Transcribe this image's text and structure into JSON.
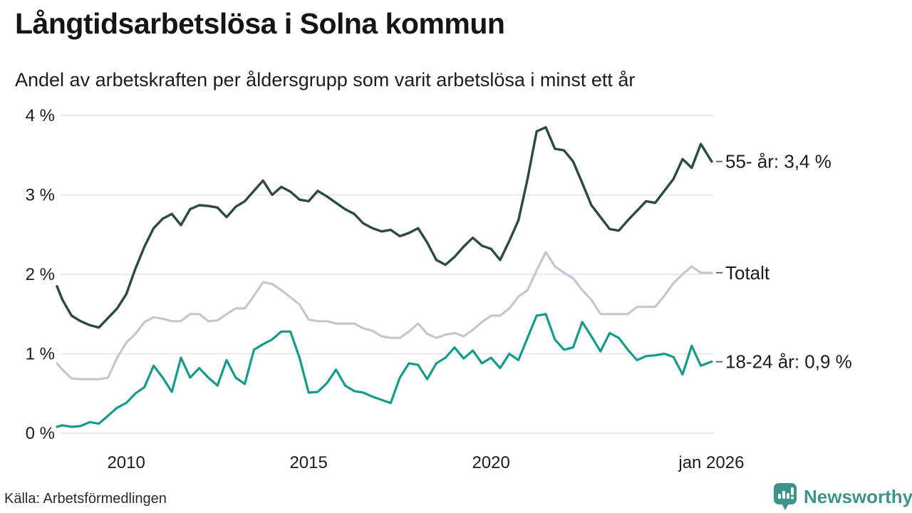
{
  "header": {
    "title": "Långtidsarbetslösa i Solna kommun",
    "subtitle": "Andel av arbetskraften per åldersgrupp som varit arbetslösa i minst ett år"
  },
  "footer": {
    "source": "Källa: Arbetsförmedlingen",
    "brand": "Newsworthy"
  },
  "colors": {
    "grid": "#e4e3e9",
    "axis_text": "#1c1c1c",
    "end_label_text": "#1b1b1b",
    "end_label_dash": "#5a5a5a",
    "brand_teal": "#3e938a",
    "title_text": "#151515"
  },
  "chart_data": {
    "type": "line",
    "title": "Långtidsarbetslösa i Solna kommun",
    "subtitle": "Andel av arbetskraften per åldersgrupp som varit arbetslösa i minst ett år",
    "xlabel": "",
    "ylabel": "",
    "grid": true,
    "legend_position": "right-end-labels",
    "x_range": [
      2008.1,
      2026.1
    ],
    "ylim": [
      0,
      4
    ],
    "y_ticks": [
      {
        "v": 0,
        "label": "0 %"
      },
      {
        "v": 1,
        "label": "1 %"
      },
      {
        "v": 2,
        "label": "2 %"
      },
      {
        "v": 3,
        "label": "3 %"
      },
      {
        "v": 4,
        "label": "4 %"
      }
    ],
    "x_ticks": [
      {
        "x": 2010,
        "label": "2010"
      },
      {
        "x": 2015,
        "label": "2015"
      },
      {
        "x": 2020,
        "label": "2020"
      },
      {
        "x": 2026.04,
        "label": "jan 2026"
      }
    ],
    "x": [
      2008.1,
      2008.25,
      2008.5,
      2008.75,
      2009.0,
      2009.25,
      2009.5,
      2009.75,
      2010.0,
      2010.25,
      2010.5,
      2010.75,
      2011.0,
      2011.25,
      2011.5,
      2011.75,
      2012.0,
      2012.25,
      2012.5,
      2012.75,
      2013.0,
      2013.25,
      2013.5,
      2013.75,
      2014.0,
      2014.25,
      2014.5,
      2014.75,
      2015.0,
      2015.25,
      2015.5,
      2015.75,
      2016.0,
      2016.25,
      2016.5,
      2016.75,
      2017.0,
      2017.25,
      2017.5,
      2017.75,
      2018.0,
      2018.25,
      2018.5,
      2018.75,
      2019.0,
      2019.25,
      2019.5,
      2019.75,
      2020.0,
      2020.25,
      2020.5,
      2020.75,
      2021.0,
      2021.25,
      2021.5,
      2021.75,
      2022.0,
      2022.25,
      2022.5,
      2022.75,
      2023.0,
      2023.25,
      2023.5,
      2023.75,
      2024.0,
      2024.25,
      2024.5,
      2024.75,
      2025.0,
      2025.25,
      2025.5,
      2025.75,
      2026.05
    ],
    "series": [
      {
        "name": "55- år",
        "end_label": "55- år: 3,4 %",
        "end_value_text": "3,4 %",
        "color": "#2b4a42",
        "stroke_width": 3.4,
        "values": [
          1.85,
          1.68,
          1.48,
          1.41,
          1.36,
          1.33,
          1.45,
          1.57,
          1.75,
          2.07,
          2.35,
          2.58,
          2.7,
          2.76,
          2.62,
          2.82,
          2.87,
          2.86,
          2.84,
          2.72,
          2.85,
          2.92,
          3.05,
          3.18,
          3.0,
          3.1,
          3.04,
          2.94,
          2.92,
          3.05,
          2.98,
          2.9,
          2.82,
          2.76,
          2.64,
          2.58,
          2.54,
          2.56,
          2.48,
          2.52,
          2.58,
          2.4,
          2.18,
          2.12,
          2.22,
          2.35,
          2.46,
          2.36,
          2.32,
          2.18,
          2.42,
          2.68,
          3.2,
          3.8,
          3.85,
          3.58,
          3.56,
          3.42,
          3.15,
          2.87,
          2.72,
          2.57,
          2.55,
          2.68,
          2.8,
          2.92,
          2.9,
          3.05,
          3.2,
          3.45,
          3.34,
          3.64,
          3.42
        ]
      },
      {
        "name": "Totalt",
        "end_label": "Totalt",
        "end_value_text": "",
        "color": "#c7c5d2",
        "stroke_width": 3.2,
        "values": [
          0.88,
          0.8,
          0.69,
          0.68,
          0.68,
          0.68,
          0.7,
          0.95,
          1.14,
          1.25,
          1.4,
          1.46,
          1.44,
          1.41,
          1.41,
          1.5,
          1.5,
          1.41,
          1.42,
          1.5,
          1.57,
          1.57,
          1.73,
          1.9,
          1.88,
          1.8,
          1.71,
          1.62,
          1.43,
          1.41,
          1.41,
          1.38,
          1.38,
          1.38,
          1.32,
          1.29,
          1.22,
          1.2,
          1.2,
          1.28,
          1.38,
          1.25,
          1.2,
          1.24,
          1.26,
          1.22,
          1.3,
          1.4,
          1.48,
          1.48,
          1.57,
          1.72,
          1.8,
          2.05,
          2.28,
          2.1,
          2.02,
          1.95,
          1.8,
          1.68,
          1.5,
          1.5,
          1.5,
          1.5,
          1.59,
          1.59,
          1.59,
          1.73,
          1.89,
          2.0,
          2.1,
          2.02,
          2.02
        ]
      },
      {
        "name": "18-24 år",
        "end_label": "18-24 år: 0,9 %",
        "end_value_text": "0,9 %",
        "color": "#169b8b",
        "stroke_width": 3.2,
        "values": [
          0.08,
          0.1,
          0.08,
          0.09,
          0.14,
          0.12,
          0.22,
          0.32,
          0.38,
          0.5,
          0.58,
          0.85,
          0.7,
          0.52,
          0.95,
          0.7,
          0.82,
          0.7,
          0.6,
          0.92,
          0.7,
          0.62,
          1.05,
          1.12,
          1.18,
          1.28,
          1.28,
          0.95,
          0.51,
          0.52,
          0.63,
          0.8,
          0.6,
          0.53,
          0.51,
          0.46,
          0.42,
          0.38,
          0.7,
          0.88,
          0.86,
          0.68,
          0.88,
          0.95,
          1.08,
          0.94,
          1.04,
          0.88,
          0.95,
          0.82,
          1.0,
          0.92,
          1.2,
          1.48,
          1.5,
          1.18,
          1.05,
          1.08,
          1.4,
          1.22,
          1.03,
          1.26,
          1.2,
          1.05,
          0.92,
          0.97,
          0.98,
          1.0,
          0.96,
          0.74,
          1.1,
          0.85,
          0.9
        ]
      }
    ]
  }
}
